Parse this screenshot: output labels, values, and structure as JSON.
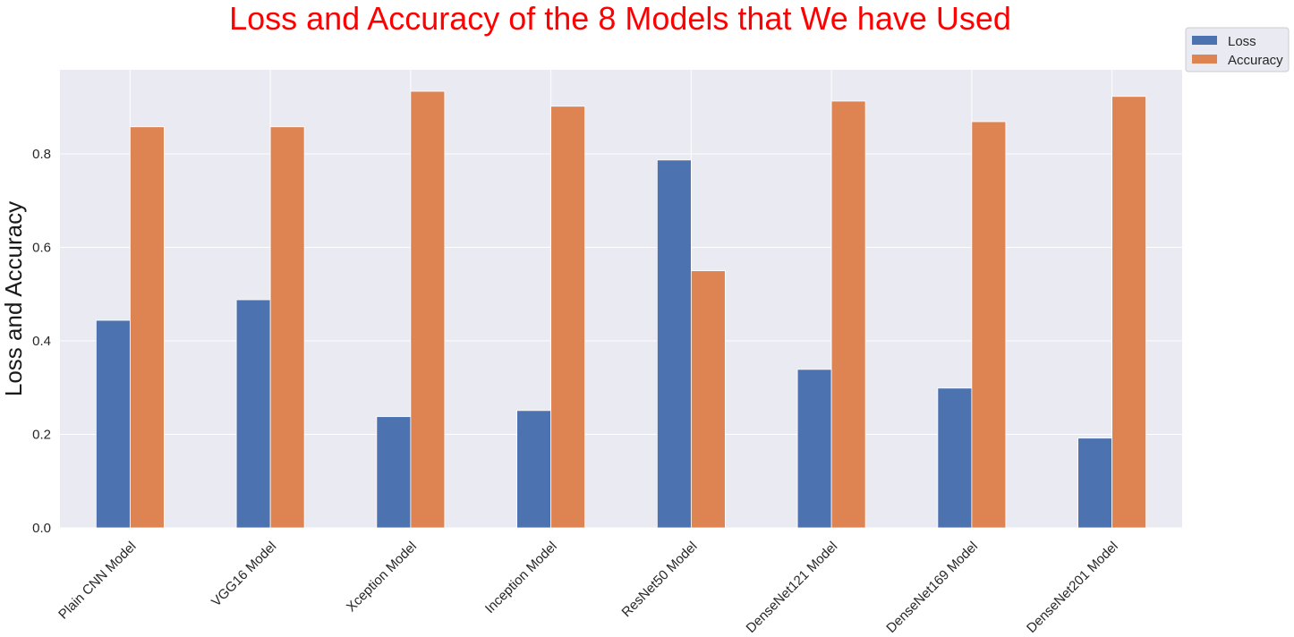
{
  "chart_data": {
    "type": "bar",
    "title": "Loss and Accuracy of the 8 Models that We have Used",
    "xlabel": "",
    "ylabel": "Loss and Accuracy",
    "categories": [
      "Plain CNN Model",
      "VGG16 Model",
      "Xception Model",
      "Inception Model",
      "ResNet50 Model",
      "DenseNet121 Model",
      "DenseNet169 Model",
      "DenseNet201 Model"
    ],
    "series": [
      {
        "name": "Loss",
        "color": "#4c72b0",
        "values": [
          0.444,
          0.488,
          0.238,
          0.251,
          0.787,
          0.339,
          0.299,
          0.192
        ]
      },
      {
        "name": "Accuracy",
        "color": "#dd8452",
        "values": [
          0.858,
          0.858,
          0.934,
          0.902,
          0.55,
          0.913,
          0.869,
          0.923
        ]
      }
    ],
    "ylim": [
      0,
      0.98
    ],
    "yticks": [
      "0.0",
      "0.2",
      "0.4",
      "0.6",
      "0.8"
    ],
    "ytick_values": [
      0,
      0.2,
      0.4,
      0.6,
      0.8
    ],
    "grid": true,
    "legend_position": "top-right",
    "colors": {
      "title": "#ff0000",
      "plot_background": "#eaeaf2",
      "grid": "#ffffff"
    }
  }
}
